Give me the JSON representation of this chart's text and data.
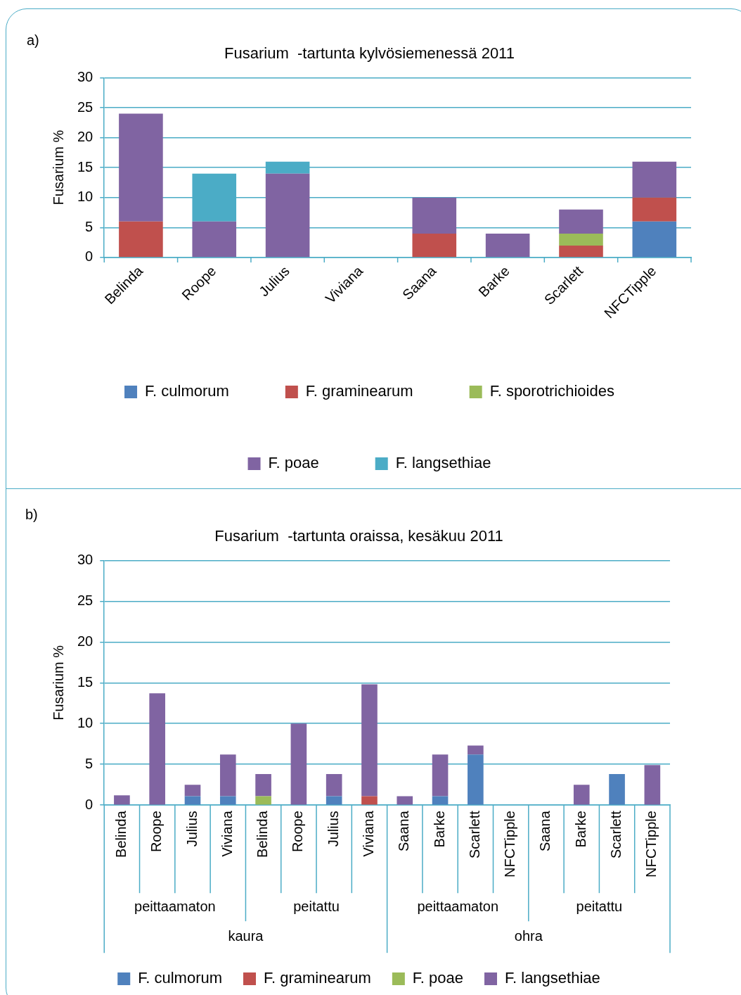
{
  "chart_data": [
    {
      "type": "bar",
      "title": "Fusarium  -tartunta kylvösiemenessä 2011",
      "ylabel": "Fusarium %",
      "annotations": [
        "a)"
      ],
      "categories": [
        "Belinda",
        "Roope",
        "Julius",
        "Viviana",
        "Saana",
        "Barke",
        "Scarlett",
        "NFCTipple"
      ],
      "series": [
        {
          "name": "F. culmorum",
          "color": "#4f81bd",
          "values": [
            0,
            0,
            0,
            0,
            0,
            0,
            0,
            6
          ]
        },
        {
          "name": "F. graminearum",
          "color": "#c0504d",
          "values": [
            6,
            0,
            0,
            0,
            4,
            0,
            2,
            4
          ]
        },
        {
          "name": "F. sporotrichioides",
          "color": "#9bbb59",
          "values": [
            0,
            0,
            0,
            0,
            0,
            0,
            2,
            0
          ]
        },
        {
          "name": "F. poae",
          "color": "#8064a2",
          "values": [
            18,
            6,
            14,
            0,
            6,
            4,
            4,
            6
          ]
        },
        {
          "name": "F. langsethiae",
          "color": "#4bacc6",
          "values": [
            0,
            8,
            2,
            0,
            0,
            0,
            0,
            0
          ]
        }
      ],
      "stacked": true,
      "ylim": [
        0,
        30
      ],
      "yticks": [
        0,
        5,
        10,
        15,
        20,
        25,
        30
      ],
      "grid": "y",
      "legend": "bottom"
    },
    {
      "type": "bar",
      "title": "Fusarium  -tartunta oraissa, kesäkuu 2011",
      "ylabel": "Fusarium %",
      "annotations": [
        "b)",
        "peittaamaton",
        "peitattu",
        "peittaamaton",
        "peitattu",
        "kaura",
        "ohra"
      ],
      "categories": [
        "Belinda",
        "Roope",
        "Julius",
        "Viviana",
        "Belinda",
        "Roope",
        "Julius",
        "Viviana",
        "Saana",
        "Barke",
        "Scarlett",
        "NFCTipple",
        "Saana",
        "Barke",
        "Scarlett",
        "NFCTipple"
      ],
      "series": [
        {
          "name": "F. culmorum",
          "color": "#4f81bd",
          "values": [
            0,
            0,
            1.1,
            1.1,
            0,
            0,
            1.1,
            0,
            0,
            1.1,
            6.2,
            0,
            0,
            0,
            3.8,
            0
          ]
        },
        {
          "name": "F. graminearum",
          "color": "#c0504d",
          "values": [
            0,
            0,
            0,
            0,
            0,
            0,
            0,
            1.1,
            0,
            0,
            0,
            0,
            0,
            0,
            0,
            0
          ]
        },
        {
          "name": "F. poae",
          "color": "#9bbb59",
          "values": [
            0,
            0,
            0,
            0,
            1.1,
            0,
            0,
            0,
            0,
            0,
            0,
            0,
            0,
            0,
            0,
            0
          ]
        },
        {
          "name": "F. langsethiae",
          "color": "#8064a2",
          "values": [
            1.2,
            13.7,
            1.4,
            5.1,
            2.7,
            10,
            2.7,
            13.7,
            1.1,
            5.1,
            1.1,
            0,
            0,
            2.5,
            0,
            4.9
          ]
        }
      ],
      "stacked": true,
      "ylim": [
        0,
        30
      ],
      "yticks": [
        0,
        5,
        10,
        15,
        20,
        25,
        30
      ],
      "grid": "y",
      "legend": "bottom"
    }
  ]
}
